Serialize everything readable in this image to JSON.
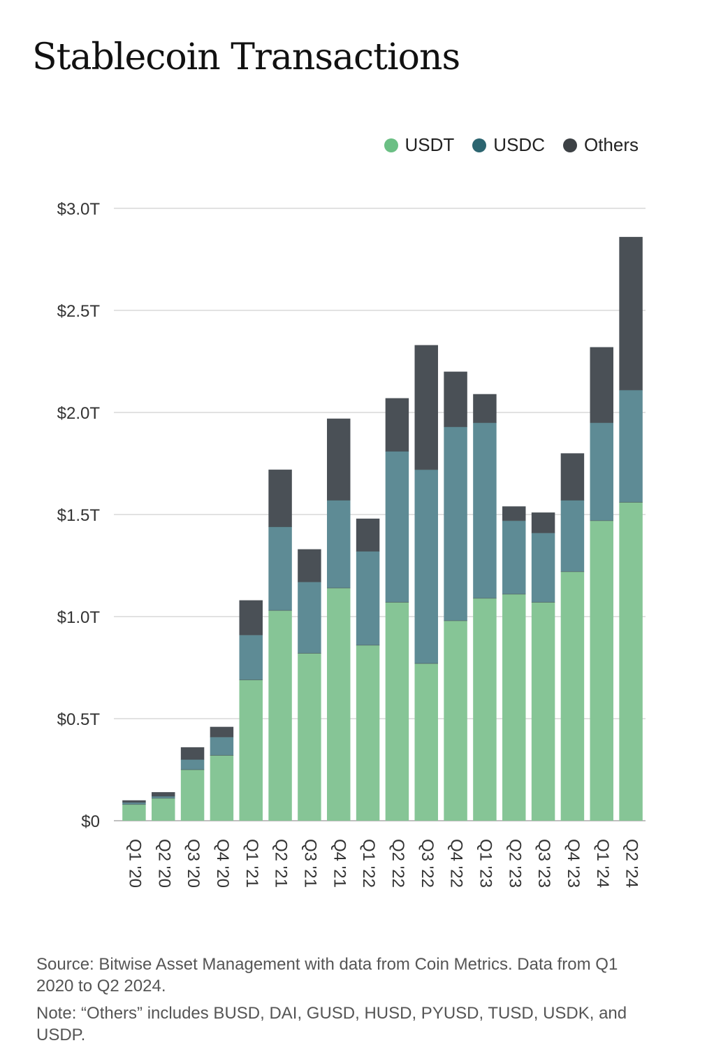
{
  "header": {
    "title": "Stablecoin Transactions"
  },
  "footer": {
    "source": "Source: Bitwise Asset Management with data from Coin Metrics. Data from Q1 2020 to Q2 2024.",
    "note": "Note: “Others” includes BUSD, DAI, GUSD, HUSD, PYUSD, TUSD, USDK, and USDP."
  },
  "chart_data": {
    "type": "bar",
    "stacked": true,
    "title": "Stablecoin Transactions",
    "xlabel": "",
    "ylabel": "",
    "ylim": [
      0,
      3.0
    ],
    "y_ticks": [
      0,
      0.5,
      1.0,
      1.5,
      2.0,
      2.5,
      3.0
    ],
    "y_tick_labels": [
      "$0",
      "$0.5T",
      "$1.0T",
      "$1.5T",
      "$2.0T",
      "$2.5T",
      "$3.0T"
    ],
    "grid": true,
    "legend_position": "top-right",
    "categories": [
      "Q1 '20",
      "Q2 '20",
      "Q3 '20",
      "Q4 '20",
      "Q1 '21",
      "Q2 '21",
      "Q3 '21",
      "Q4 '21",
      "Q1 '22",
      "Q2 '22",
      "Q3 '22",
      "Q4 '22",
      "Q1 '23",
      "Q2 '23",
      "Q3 '23",
      "Q4 '23",
      "Q1 '24",
      "Q2 '24"
    ],
    "series": [
      {
        "name": "USDT",
        "color": "#86c596",
        "values": [
          0.08,
          0.11,
          0.25,
          0.32,
          0.69,
          1.03,
          0.82,
          1.14,
          0.86,
          1.07,
          0.77,
          0.98,
          1.09,
          1.11,
          1.07,
          1.22,
          1.47,
          1.56
        ]
      },
      {
        "name": "USDC",
        "color": "#5e8b95",
        "values": [
          0.01,
          0.01,
          0.05,
          0.09,
          0.22,
          0.41,
          0.35,
          0.43,
          0.46,
          0.74,
          0.95,
          0.95,
          0.86,
          0.36,
          0.34,
          0.35,
          0.48,
          0.55
        ]
      },
      {
        "name": "Others",
        "color": "#4a5056",
        "values": [
          0.01,
          0.02,
          0.06,
          0.05,
          0.17,
          0.28,
          0.16,
          0.4,
          0.16,
          0.26,
          0.61,
          0.27,
          0.14,
          0.07,
          0.1,
          0.23,
          0.37,
          0.75
        ]
      }
    ],
    "legend_colors": {
      "USDT": "#6bbf84",
      "USDC": "#2c6570",
      "Others": "#3d4145"
    }
  }
}
